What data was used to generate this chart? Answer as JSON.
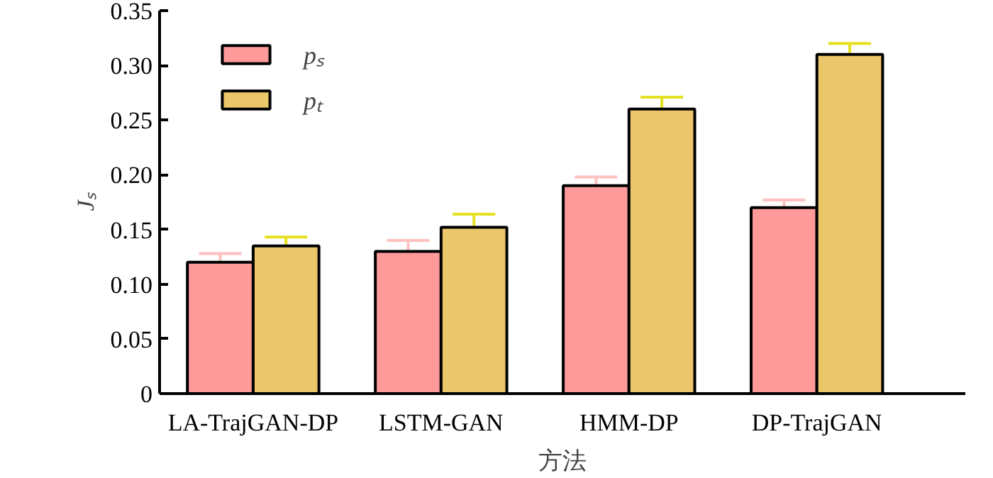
{
  "chart_data": {
    "type": "bar",
    "xlabel": "方法",
    "ylabel": "Jₛ",
    "categories": [
      "LA-TrajGAN-DP",
      "LSTM-GAN",
      "HMM-DP",
      "DP-TrajGAN"
    ],
    "series": [
      {
        "name": "pₛ",
        "color": "#fe9a9a",
        "values": [
          0.12,
          0.13,
          0.19,
          0.17
        ],
        "errors": [
          0.008,
          0.01,
          0.008,
          0.007
        ]
      },
      {
        "name": "pₜ",
        "color": "#ecc66a",
        "values": [
          0.135,
          0.152,
          0.26,
          0.31
        ],
        "errors": [
          0.008,
          0.012,
          0.011,
          0.01
        ]
      }
    ],
    "ylim": [
      0,
      0.35
    ],
    "yticks": [
      0,
      0.05,
      {
        "value": 0.1,
        "label": "0.10"
      },
      0.15,
      {
        "value": 0.2,
        "label": "0.20"
      },
      0.25,
      {
        "value": 0.3,
        "label": "0.30"
      },
      0.35
    ],
    "legend": "top left",
    "grid": false
  }
}
